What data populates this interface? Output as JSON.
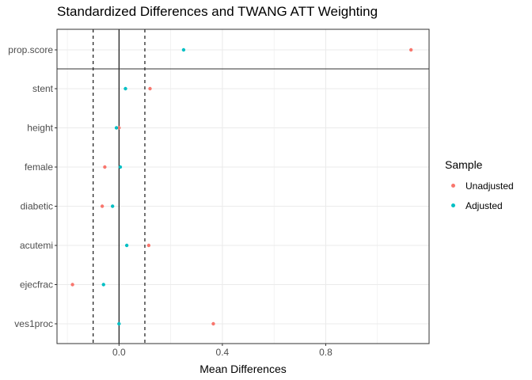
{
  "chart_data": {
    "type": "scatter",
    "title": "Standardized Differences and TWANG ATT Weighting",
    "xlabel": "Mean Differences",
    "ylabel": "",
    "xlim": [
      -0.24,
      1.2
    ],
    "xticks": [
      0.0,
      0.4,
      0.8
    ],
    "xtick_labels": [
      "0.0",
      "0.4",
      "0.8"
    ],
    "categories": [
      "prop.score",
      "stent",
      "height",
      "female",
      "diabetic",
      "acutemi",
      "ejecfrac",
      "ves1proc"
    ],
    "series": [
      {
        "name": "Unadjusted",
        "color": "#F8766D",
        "values": [
          1.13,
          0.12,
          0.0,
          -0.055,
          -0.065,
          0.115,
          -0.18,
          0.365
        ]
      },
      {
        "name": "Adjusted",
        "color": "#00BFC4",
        "values": [
          0.25,
          0.025,
          -0.01,
          0.005,
          -0.025,
          0.03,
          -0.06,
          0.0
        ]
      }
    ],
    "reference_lines": {
      "solid": [
        0.0
      ],
      "dashed": [
        -0.1,
        0.1
      ]
    },
    "legend": {
      "title": "Sample",
      "position": "right"
    },
    "grid": true
  }
}
